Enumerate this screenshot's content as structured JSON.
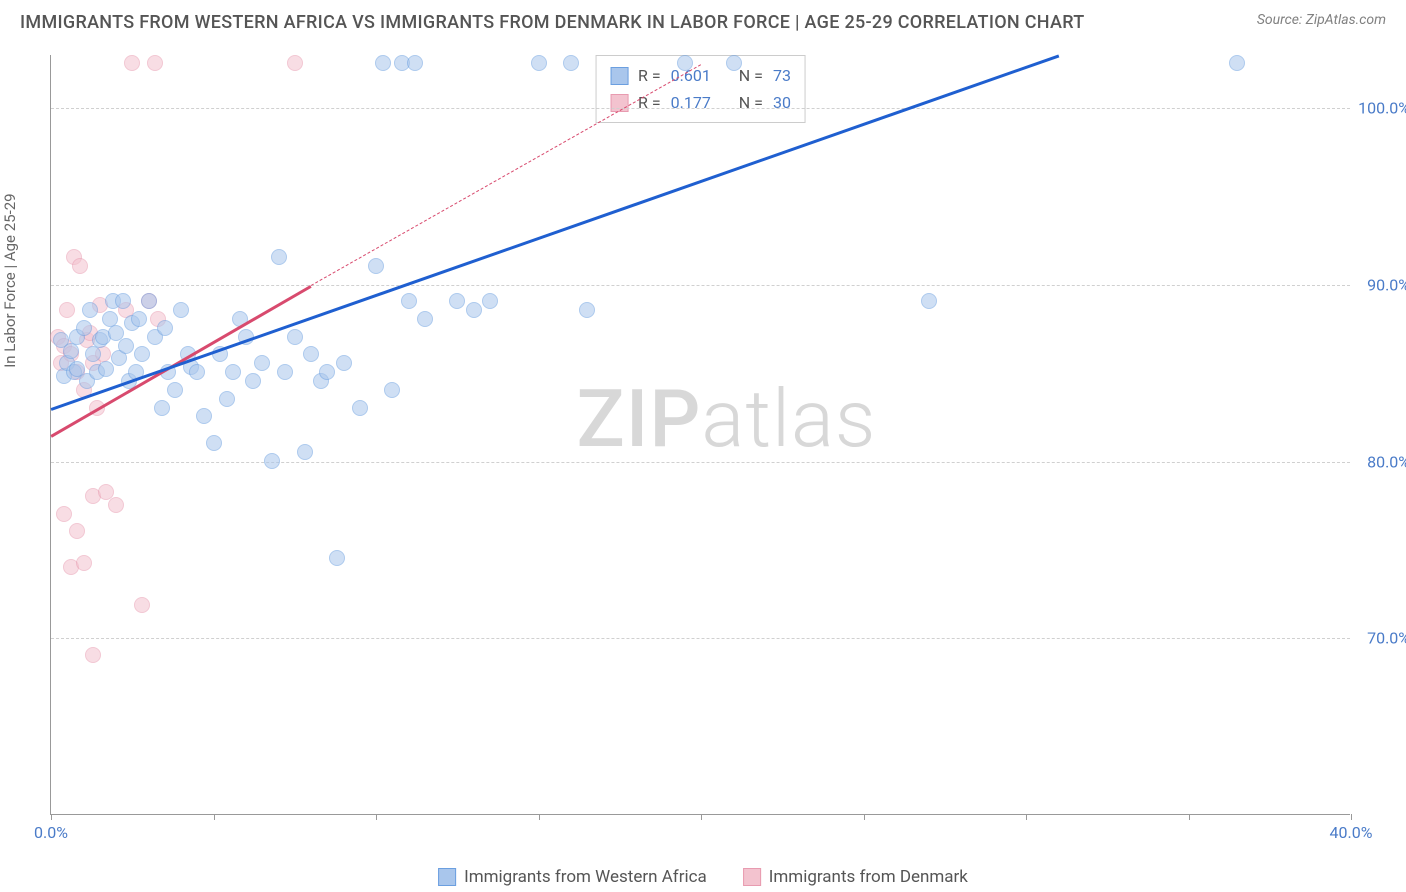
{
  "header": {
    "title": "IMMIGRANTS FROM WESTERN AFRICA VS IMMIGRANTS FROM DENMARK IN LABOR FORCE | AGE 25-29 CORRELATION CHART",
    "source": "Source: ZipAtlas.com"
  },
  "chart": {
    "type": "scatter",
    "y_label": "In Labor Force | Age 25-29",
    "xlim": [
      0,
      40
    ],
    "ylim": [
      60,
      103
    ],
    "background_color": "#ffffff",
    "grid_color": "#d0d0d0",
    "axis_color": "#999999",
    "y_ticks": [
      70,
      80,
      90,
      100
    ],
    "y_tick_labels": [
      "70.0%",
      "80.0%",
      "90.0%",
      "100.0%"
    ],
    "x_ticks": [
      0,
      5,
      10,
      15,
      20,
      25,
      30,
      35,
      40
    ],
    "x_tick_labels_shown": {
      "0": "0.0%",
      "40": "40.0%"
    },
    "tick_label_color": "#4a7bc8",
    "tick_label_fontsize": 16,
    "axis_label_color": "#666666",
    "axis_label_fontsize": 15,
    "marker_radius": 8,
    "marker_opacity": 0.55,
    "watermark": "ZIPatlas",
    "watermark_color": "#d8d8d8"
  },
  "series": {
    "western_africa": {
      "label": "Immigrants from Western Africa",
      "fill_color": "#a9c6ec",
      "stroke_color": "#6b9fe0",
      "line_color": "#1f5fd0",
      "line_width": 2.5,
      "R": "0.601",
      "N": "73",
      "regression": {
        "x1": 0,
        "y1": 83,
        "x2": 31,
        "y2": 103
      },
      "points": [
        [
          0.3,
          86.8
        ],
        [
          0.4,
          84.8
        ],
        [
          0.5,
          85.5
        ],
        [
          0.6,
          86.2
        ],
        [
          0.7,
          85.0
        ],
        [
          0.8,
          87.0
        ],
        [
          0.8,
          85.2
        ],
        [
          1.0,
          87.5
        ],
        [
          1.1,
          84.5
        ],
        [
          1.2,
          88.5
        ],
        [
          1.3,
          86.0
        ],
        [
          1.4,
          85.0
        ],
        [
          1.5,
          86.8
        ],
        [
          1.6,
          87.0
        ],
        [
          1.7,
          85.2
        ],
        [
          1.8,
          88.0
        ],
        [
          1.9,
          89.0
        ],
        [
          2.0,
          87.2
        ],
        [
          2.1,
          85.8
        ],
        [
          2.2,
          89.0
        ],
        [
          2.3,
          86.5
        ],
        [
          2.4,
          84.5
        ],
        [
          2.5,
          87.8
        ],
        [
          2.6,
          85.0
        ],
        [
          2.7,
          88.0
        ],
        [
          2.8,
          86.0
        ],
        [
          3.0,
          89.0
        ],
        [
          3.2,
          87.0
        ],
        [
          3.4,
          83.0
        ],
        [
          3.5,
          87.5
        ],
        [
          3.6,
          85.0
        ],
        [
          3.8,
          84.0
        ],
        [
          4.0,
          88.5
        ],
        [
          4.2,
          86.0
        ],
        [
          4.3,
          85.3
        ],
        [
          4.5,
          85.0
        ],
        [
          4.7,
          82.5
        ],
        [
          5.0,
          81.0
        ],
        [
          5.2,
          86.0
        ],
        [
          5.4,
          83.5
        ],
        [
          5.6,
          85.0
        ],
        [
          5.8,
          88.0
        ],
        [
          6.0,
          87.0
        ],
        [
          6.2,
          84.5
        ],
        [
          6.5,
          85.5
        ],
        [
          6.8,
          80.0
        ],
        [
          7.0,
          91.5
        ],
        [
          7.2,
          85.0
        ],
        [
          7.5,
          87.0
        ],
        [
          7.8,
          80.5
        ],
        [
          8.0,
          86.0
        ],
        [
          8.3,
          84.5
        ],
        [
          8.5,
          85.0
        ],
        [
          8.8,
          74.5
        ],
        [
          9.0,
          85.5
        ],
        [
          9.5,
          83.0
        ],
        [
          10.0,
          91.0
        ],
        [
          10.2,
          102.5
        ],
        [
          10.5,
          84.0
        ],
        [
          10.8,
          102.5
        ],
        [
          11.0,
          89.0
        ],
        [
          11.2,
          102.5
        ],
        [
          11.5,
          88.0
        ],
        [
          12.5,
          89.0
        ],
        [
          13.0,
          88.5
        ],
        [
          13.5,
          89.0
        ],
        [
          15.0,
          102.5
        ],
        [
          16.0,
          102.5
        ],
        [
          16.5,
          88.5
        ],
        [
          19.5,
          102.5
        ],
        [
          21.0,
          102.5
        ],
        [
          27.0,
          89.0
        ],
        [
          36.5,
          102.5
        ]
      ]
    },
    "denmark": {
      "label": "Immigrants from Denmark",
      "fill_color": "#f3c3cf",
      "stroke_color": "#e89bb0",
      "line_color": "#d84a6e",
      "line_width": 2.5,
      "R": "0.177",
      "N": "30",
      "regression_solid": {
        "x1": 0,
        "y1": 81.5,
        "x2": 8,
        "y2": 90
      },
      "regression_dashed": {
        "x1": 8,
        "y1": 90,
        "x2": 20,
        "y2": 102.5
      },
      "points": [
        [
          0.2,
          87.0
        ],
        [
          0.3,
          85.5
        ],
        [
          0.4,
          86.5
        ],
        [
          0.5,
          88.5
        ],
        [
          0.6,
          86.0
        ],
        [
          0.7,
          91.5
        ],
        [
          0.8,
          85.0
        ],
        [
          0.9,
          91.0
        ],
        [
          1.0,
          84.0
        ],
        [
          1.1,
          86.8
        ],
        [
          1.2,
          87.2
        ],
        [
          1.3,
          85.5
        ],
        [
          1.4,
          83.0
        ],
        [
          1.5,
          88.8
        ],
        [
          1.6,
          86.0
        ],
        [
          1.3,
          78.0
        ],
        [
          1.7,
          78.2
        ],
        [
          2.0,
          77.5
        ],
        [
          0.4,
          77.0
        ],
        [
          0.6,
          74.0
        ],
        [
          1.0,
          74.2
        ],
        [
          0.8,
          76.0
        ],
        [
          1.3,
          69.0
        ],
        [
          2.8,
          71.8
        ],
        [
          2.3,
          88.5
        ],
        [
          3.0,
          89.0
        ],
        [
          3.3,
          88.0
        ],
        [
          2.5,
          102.5
        ],
        [
          3.2,
          102.5
        ],
        [
          7.5,
          102.5
        ]
      ]
    }
  },
  "stats_box": {
    "rows": [
      {
        "swatch_fill": "#a9c6ec",
        "swatch_stroke": "#6b9fe0",
        "r_label": "R =",
        "r_val": "0.601",
        "n_label": "N =",
        "n_val": "73"
      },
      {
        "swatch_fill": "#f3c3cf",
        "swatch_stroke": "#e89bb0",
        "r_label": "R =",
        "r_val": "0.177",
        "n_label": "N =",
        "n_val": "30"
      }
    ]
  },
  "bottom_legend": [
    {
      "swatch_fill": "#a9c6ec",
      "swatch_stroke": "#6b9fe0",
      "label": "Immigrants from Western Africa"
    },
    {
      "swatch_fill": "#f3c3cf",
      "swatch_stroke": "#e89bb0",
      "label": "Immigrants from Denmark"
    }
  ]
}
